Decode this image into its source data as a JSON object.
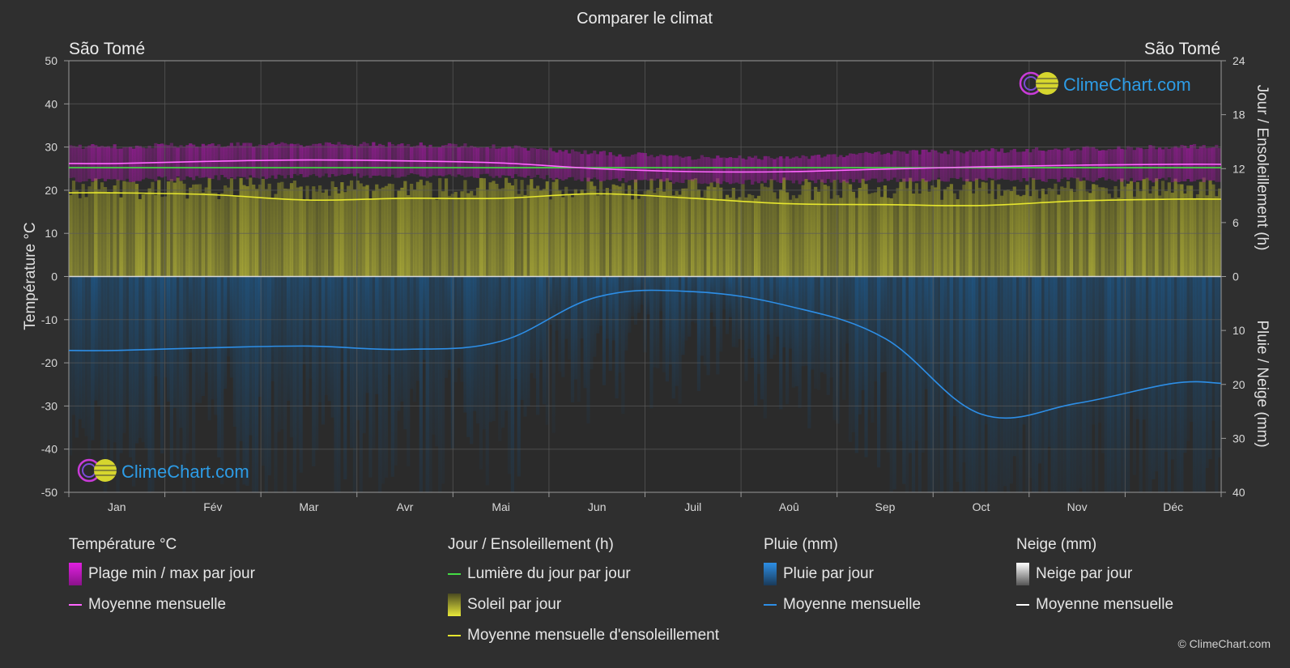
{
  "title": "Comparer le climat",
  "location_left": "São Tomé",
  "location_right": "São Tomé",
  "watermark": "ClimeChart.com",
  "copyright": "© ClimeChart.com",
  "colors": {
    "background": "#2f2f2f",
    "temp_band": "#c21cc2",
    "temp_mean": "#ff66ff",
    "daylight": "#44dd44",
    "sunshine_fill": "#b9b929",
    "sunshine_mean": "#e6e62e",
    "rain_fill": "#1e6eb0",
    "rain_mean": "#2d8ee6",
    "snow_mean": "#ffffff"
  },
  "chart_data": {
    "type": "line",
    "x_categories": [
      "Jan",
      "Fév",
      "Mar",
      "Avr",
      "Mai",
      "Jun",
      "Juil",
      "Aoû",
      "Sep",
      "Oct",
      "Nov",
      "Déc"
    ],
    "y_left": {
      "label": "Température °C",
      "ticks": [
        "50",
        "40",
        "30",
        "20",
        "10",
        "0",
        "-10",
        "-20",
        "-30",
        "-40",
        "-50"
      ],
      "range": [
        -50,
        50
      ]
    },
    "y_right_top": {
      "label": "Jour / Ensoleillement (h)",
      "ticks": [
        "24",
        "18",
        "12",
        "6",
        "0"
      ],
      "range": [
        0,
        24
      ]
    },
    "y_right_bottom": {
      "label": "Pluie / Neige (mm)",
      "ticks": [
        "0",
        "10",
        "20",
        "30",
        "40"
      ],
      "range": [
        0,
        40
      ]
    },
    "grid": true,
    "series": [
      {
        "name": "Plage min / max par jour",
        "axis": "temperature",
        "kind": "band",
        "min": [
          23,
          23.5,
          24,
          24,
          24,
          23,
          22.5,
          22.5,
          23,
          23,
          23,
          23
        ],
        "max": [
          29.5,
          30,
          30,
          30,
          29.5,
          28,
          27,
          27,
          28,
          28.5,
          29,
          29.5
        ]
      },
      {
        "name": "Moyenne mensuelle",
        "axis": "temperature",
        "kind": "line",
        "values": [
          26.2,
          26.7,
          27.0,
          26.8,
          26.3,
          25.0,
          24.3,
          24.3,
          24.9,
          25.4,
          25.8,
          26.0
        ]
      },
      {
        "name": "Lumière du jour par jour",
        "axis": "hours",
        "kind": "line",
        "values": [
          12.1,
          12.1,
          12.1,
          12.1,
          12.1,
          12.1,
          12.1,
          12.1,
          12.1,
          12.1,
          12.1,
          12.1
        ]
      },
      {
        "name": "Soleil par jour",
        "axis": "hours",
        "kind": "area",
        "values": [
          11,
          11,
          11,
          11,
          11,
          11,
          11,
          11,
          11,
          11,
          11,
          11
        ]
      },
      {
        "name": "Moyenne mensuelle d'ensoleillement",
        "axis": "hours",
        "kind": "line",
        "values": [
          9.3,
          9.1,
          8.5,
          8.7,
          8.7,
          9.2,
          8.7,
          8.1,
          8.0,
          7.9,
          8.4,
          8.6
        ]
      },
      {
        "name": "Pluie par jour",
        "axis": "precipitation",
        "kind": "bars"
      },
      {
        "name": "Moyenne mensuelle",
        "axis": "precipitation",
        "kind": "line",
        "values": [
          13.7,
          13.2,
          12.9,
          13.5,
          12.0,
          3.8,
          2.8,
          5.5,
          11.5,
          25.5,
          23.5,
          19.8
        ]
      }
    ]
  },
  "legend": {
    "temperature": {
      "title": "Température °C",
      "items": [
        "Plage min / max par jour",
        "Moyenne mensuelle"
      ]
    },
    "daylight": {
      "title": "Jour / Ensoleillement (h)",
      "items": [
        "Lumière du jour par jour",
        "Soleil par jour",
        "Moyenne mensuelle d'ensoleillement"
      ]
    },
    "rain": {
      "title": "Pluie (mm)",
      "items": [
        "Pluie par jour",
        "Moyenne mensuelle"
      ]
    },
    "snow": {
      "title": "Neige (mm)",
      "items": [
        "Neige par jour",
        "Moyenne mensuelle"
      ]
    }
  }
}
